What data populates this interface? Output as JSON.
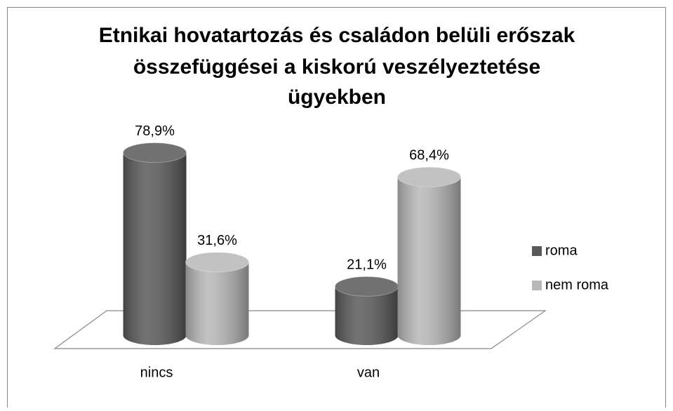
{
  "chart_data": {
    "type": "bar3d",
    "title": [
      "Etnikai hovatartozás és családon belüli erőszak",
      "összefüggései a kiskorú veszélyeztetése",
      "ügyekben"
    ],
    "categories": [
      "nincs",
      "van"
    ],
    "series": [
      {
        "name": "roma",
        "color": "#595959",
        "values": [
          78.9,
          21.1
        ],
        "value_labels": [
          "78,9%",
          "21,1%"
        ]
      },
      {
        "name": "nem roma",
        "color": "#b8b8b8",
        "values": [
          31.6,
          68.4
        ],
        "value_labels": [
          "31,6%",
          "68,4%"
        ]
      }
    ]
  }
}
